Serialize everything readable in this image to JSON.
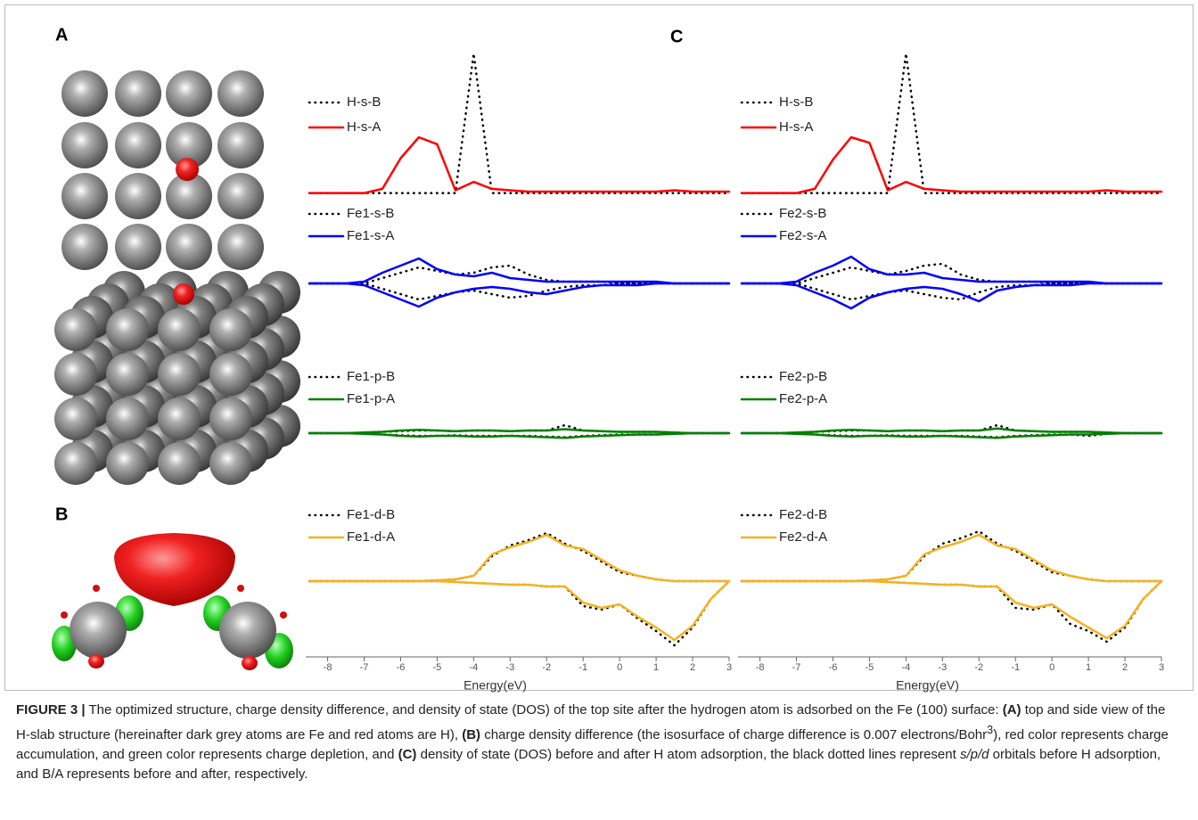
{
  "panel_labels": [
    "A",
    "B",
    "C"
  ],
  "chart_data": [
    {
      "type": "line",
      "x": [
        -8.5,
        -8,
        -7.5,
        -7,
        -6.5,
        -6,
        -5.5,
        -5,
        -4.5,
        -4,
        -3.5,
        -3,
        -2.5,
        -2,
        -1.5,
        -1,
        -0.5,
        0,
        0.5,
        1,
        1.5,
        2,
        2.5,
        3
      ],
      "xlim": [
        -8.6,
        3
      ],
      "ylim": [
        -0.6,
        10
      ],
      "series": [
        {
          "name": "H-s-B",
          "color": "#000000",
          "linestyle": "dotted",
          "values": [
            0,
            0,
            0,
            0,
            0,
            0,
            0,
            0,
            0,
            10,
            0,
            0,
            0,
            0,
            0,
            0,
            0,
            0,
            0,
            0,
            0,
            0,
            0,
            0
          ]
        },
        {
          "name": "H-s-A",
          "color": "#ff0000",
          "linestyle": "solid",
          "values": [
            0,
            0,
            0,
            0,
            0.3,
            2.5,
            4,
            3.5,
            0.2,
            0.8,
            0.3,
            0.2,
            0.1,
            0.1,
            0.1,
            0.1,
            0.1,
            0.1,
            0.1,
            0.1,
            0.2,
            0.1,
            0.1,
            0.1
          ]
        }
      ]
    },
    {
      "type": "line",
      "x": [
        -8.5,
        -8,
        -7.5,
        -7,
        -6.5,
        -6,
        -5.5,
        -5,
        -4.5,
        -4,
        -3.5,
        -3,
        -2.5,
        -2,
        -1.5,
        -1,
        -0.5,
        0,
        0.5,
        1,
        1.5,
        2,
        2.5,
        3
      ],
      "xlim": [
        -8.6,
        3
      ],
      "ylim": [
        -0.6,
        10
      ],
      "series": [
        {
          "name": "H-s-B",
          "color": "#000000",
          "linestyle": "dotted",
          "values": [
            0,
            0,
            0,
            0,
            0,
            0,
            0,
            0,
            0,
            10,
            0,
            0,
            0,
            0,
            0,
            0,
            0,
            0,
            0,
            0,
            0,
            0,
            0,
            0
          ]
        },
        {
          "name": "H-s-A",
          "color": "#ff0000",
          "linestyle": "solid",
          "values": [
            0,
            0,
            0,
            0,
            0.3,
            2.4,
            4,
            3.6,
            0.2,
            0.8,
            0.3,
            0.2,
            0.1,
            0.1,
            0.1,
            0.1,
            0.1,
            0.1,
            0.1,
            0.1,
            0.2,
            0.1,
            0.1,
            0.1
          ]
        }
      ]
    },
    {
      "type": "line",
      "x": [
        -8.5,
        -8,
        -7.5,
        -7,
        -6.5,
        -6,
        -5.5,
        -5,
        -4.5,
        -4,
        -3.5,
        -3,
        -2.5,
        -2,
        -1.5,
        -1,
        -0.5,
        0,
        0.5,
        1,
        1.5,
        2,
        2.5,
        3
      ],
      "xlim": [
        -8.6,
        3
      ],
      "ylim": [
        -2,
        2
      ],
      "series": [
        {
          "name": "Fe1-s-B",
          "color": "#000000",
          "linestyle": "dotted",
          "values": [
            0,
            0,
            0,
            0,
            0.3,
            0.6,
            0.9,
            0.7,
            0.5,
            0.6,
            0.9,
            1.0,
            0.5,
            0.2,
            0.1,
            0.1,
            0.1,
            0,
            0,
            0,
            0,
            0,
            0,
            0
          ],
          "values_down": [
            0,
            0,
            0,
            0,
            -0.3,
            -0.6,
            -0.9,
            -0.7,
            -0.5,
            -0.4,
            -0.6,
            -0.8,
            -0.7,
            -0.4,
            -0.2,
            -0.1,
            -0.1,
            0,
            0,
            0,
            0,
            0,
            0,
            0
          ]
        },
        {
          "name": "Fe1-s-A",
          "color": "#0000ff",
          "linestyle": "solid",
          "values": [
            0,
            0,
            0,
            0.1,
            0.6,
            1.0,
            1.4,
            0.8,
            0.5,
            0.4,
            0.6,
            0.3,
            0.2,
            0.1,
            0.1,
            0.1,
            0.1,
            0.1,
            0.1,
            0.1,
            0,
            0,
            0,
            0
          ],
          "values_down": [
            0,
            0,
            0,
            -0.1,
            -0.5,
            -0.9,
            -1.3,
            -0.8,
            -0.5,
            -0.3,
            -0.2,
            -0.3,
            -0.5,
            -0.6,
            -0.4,
            -0.2,
            -0.1,
            -0.1,
            -0.1,
            0,
            0,
            0,
            0,
            0
          ]
        }
      ]
    },
    {
      "type": "line",
      "x": [
        -8.5,
        -8,
        -7.5,
        -7,
        -6.5,
        -6,
        -5.5,
        -5,
        -4.5,
        -4,
        -3.5,
        -3,
        -2.5,
        -2,
        -1.5,
        -1,
        -0.5,
        0,
        0.5,
        1,
        1.5,
        2,
        2.5,
        3
      ],
      "xlim": [
        -8.6,
        3
      ],
      "ylim": [
        -2,
        2
      ],
      "series": [
        {
          "name": "Fe2-s-B",
          "color": "#000000",
          "linestyle": "dotted",
          "values": [
            0,
            0,
            0,
            0,
            0.3,
            0.6,
            0.9,
            0.7,
            0.5,
            0.7,
            1.0,
            1.1,
            0.5,
            0.2,
            0.1,
            0.1,
            0.1,
            0,
            0,
            0,
            0,
            0,
            0,
            0
          ],
          "values_down": [
            0,
            0,
            0,
            0,
            -0.3,
            -0.6,
            -0.9,
            -0.7,
            -0.5,
            -0.4,
            -0.6,
            -0.8,
            -0.9,
            -0.5,
            -0.2,
            -0.1,
            -0.1,
            0,
            0,
            0,
            0,
            0,
            0,
            0
          ]
        },
        {
          "name": "Fe2-s-A",
          "color": "#0000ff",
          "linestyle": "solid",
          "values": [
            0,
            0,
            0,
            0.1,
            0.6,
            1.0,
            1.5,
            0.8,
            0.5,
            0.5,
            0.6,
            0.3,
            0.2,
            0.1,
            0.1,
            0.1,
            0.1,
            0.1,
            0.1,
            0.1,
            0,
            0,
            0,
            0
          ],
          "values_down": [
            0,
            0,
            0,
            -0.1,
            -0.5,
            -0.9,
            -1.4,
            -0.8,
            -0.5,
            -0.3,
            -0.2,
            -0.3,
            -0.6,
            -1.0,
            -0.4,
            -0.2,
            -0.1,
            -0.1,
            -0.1,
            0,
            0,
            0,
            0,
            0
          ]
        }
      ]
    },
    {
      "type": "line",
      "x": [
        -8.5,
        -8,
        -7.5,
        -7,
        -6.5,
        -6,
        -5.5,
        -5,
        -4.5,
        -4,
        -3.5,
        -3,
        -2.5,
        -2,
        -1.5,
        -1,
        -0.5,
        0,
        0.5,
        1,
        1.5,
        2,
        2.5,
        3
      ],
      "xlim": [
        -8.6,
        3
      ],
      "ylim": [
        -2,
        2
      ],
      "series": [
        {
          "name": "Fe1-p-B",
          "color": "#000000",
          "linestyle": "dotted",
          "values": [
            0,
            0,
            0,
            0.05,
            0.1,
            0.15,
            0.2,
            0.2,
            0.15,
            0.2,
            0.2,
            0.15,
            0.2,
            0.2,
            0.6,
            0.2,
            0.15,
            0.1,
            0.1,
            0.1,
            0.05,
            0,
            0,
            0
          ],
          "values_down": [
            0,
            0,
            0,
            -0.05,
            -0.1,
            -0.15,
            -0.2,
            -0.2,
            -0.15,
            -0.2,
            -0.2,
            -0.2,
            -0.2,
            -0.25,
            -0.3,
            -0.2,
            -0.15,
            -0.1,
            -0.1,
            -0.1,
            -0.05,
            0,
            0,
            0
          ]
        },
        {
          "name": "Fe1-p-A",
          "color": "#007f00",
          "linestyle": "solid",
          "values": [
            0,
            0,
            0,
            0.05,
            0.1,
            0.2,
            0.25,
            0.2,
            0.15,
            0.2,
            0.2,
            0.15,
            0.2,
            0.2,
            0.3,
            0.2,
            0.15,
            0.1,
            0.1,
            0.1,
            0.05,
            0,
            0,
            0
          ],
          "values_down": [
            0,
            0,
            0,
            -0.05,
            -0.1,
            -0.2,
            -0.25,
            -0.2,
            -0.2,
            -0.25,
            -0.25,
            -0.2,
            -0.25,
            -0.3,
            -0.35,
            -0.25,
            -0.2,
            -0.15,
            -0.1,
            -0.1,
            -0.05,
            0,
            0,
            0
          ]
        }
      ]
    },
    {
      "type": "line",
      "x": [
        -8.5,
        -8,
        -7.5,
        -7,
        -6.5,
        -6,
        -5.5,
        -5,
        -4.5,
        -4,
        -3.5,
        -3,
        -2.5,
        -2,
        -1.5,
        -1,
        -0.5,
        0,
        0.5,
        1,
        1.5,
        2,
        2.5,
        3
      ],
      "xlim": [
        -8.6,
        3
      ],
      "ylim": [
        -2,
        2
      ],
      "series": [
        {
          "name": "Fe2-p-B",
          "color": "#000000",
          "linestyle": "dotted",
          "values": [
            0,
            0,
            0,
            0.05,
            0.1,
            0.15,
            0.2,
            0.2,
            0.15,
            0.2,
            0.2,
            0.15,
            0.2,
            0.2,
            0.6,
            0.2,
            0.15,
            0.1,
            0.1,
            0.1,
            0.05,
            0,
            0,
            0
          ],
          "values_down": [
            0,
            0,
            0,
            -0.05,
            -0.1,
            -0.15,
            -0.2,
            -0.2,
            -0.15,
            -0.2,
            -0.2,
            -0.2,
            -0.2,
            -0.25,
            -0.3,
            -0.2,
            -0.15,
            -0.1,
            -0.1,
            -0.2,
            -0.05,
            0,
            0,
            0
          ]
        },
        {
          "name": "Fe2-p-A",
          "color": "#007f00",
          "linestyle": "solid",
          "values": [
            0,
            0,
            0,
            0.05,
            0.1,
            0.2,
            0.25,
            0.2,
            0.15,
            0.2,
            0.2,
            0.15,
            0.2,
            0.2,
            0.35,
            0.2,
            0.15,
            0.1,
            0.1,
            0.1,
            0.05,
            0,
            0,
            0
          ],
          "values_down": [
            0,
            0,
            0,
            -0.05,
            -0.1,
            -0.2,
            -0.25,
            -0.2,
            -0.2,
            -0.25,
            -0.25,
            -0.2,
            -0.25,
            -0.3,
            -0.35,
            -0.25,
            -0.2,
            -0.15,
            -0.1,
            -0.1,
            -0.05,
            0,
            0,
            0
          ]
        }
      ]
    },
    {
      "type": "line",
      "x": [
        -8.5,
        -8,
        -7.5,
        -7,
        -6.5,
        -6,
        -5.5,
        -5,
        -4.5,
        -4,
        -3.5,
        -3,
        -2.5,
        -2,
        -1.5,
        -1,
        -0.5,
        0,
        0.5,
        1,
        1.5,
        2,
        2.5,
        3
      ],
      "xlim": [
        -8.6,
        3
      ],
      "ylim": [
        -4,
        4
      ],
      "xticks": [
        -8,
        -7,
        -6,
        -5,
        -4,
        -3,
        -2,
        -1,
        0,
        1,
        2,
        3
      ],
      "xlabel": "Energy(eV)",
      "series": [
        {
          "name": "Fe1-d-B",
          "color": "#000000",
          "linestyle": "dotted",
          "values": [
            0,
            0,
            0,
            0,
            0,
            0,
            0,
            0.05,
            0.1,
            0.3,
            1.4,
            2.0,
            2.3,
            2.7,
            2.1,
            1.7,
            1.1,
            0.5,
            0.3,
            0.1,
            0,
            0,
            0,
            0
          ],
          "values_down": [
            0,
            0,
            0,
            0,
            0,
            0,
            0,
            0,
            -0.05,
            -0.1,
            -0.15,
            -0.2,
            -0.2,
            -0.3,
            -0.3,
            -1.4,
            -1.6,
            -1.3,
            -2.1,
            -2.8,
            -3.6,
            -2.6,
            -1.0,
            0
          ]
        },
        {
          "name": "Fe1-d-A",
          "color": "#f5b220",
          "linestyle": "solid",
          "values": [
            0,
            0,
            0,
            0,
            0,
            0,
            0,
            0.05,
            0.1,
            0.3,
            1.5,
            1.9,
            2.2,
            2.6,
            2.0,
            1.8,
            1.2,
            0.6,
            0.3,
            0.1,
            0,
            0,
            0,
            0
          ],
          "values_down": [
            0,
            0,
            0,
            0,
            0,
            0,
            0,
            0,
            -0.05,
            -0.1,
            -0.15,
            -0.2,
            -0.2,
            -0.3,
            -0.3,
            -1.2,
            -1.5,
            -1.3,
            -2.0,
            -2.6,
            -3.3,
            -2.5,
            -1.0,
            0
          ]
        }
      ]
    },
    {
      "type": "line",
      "x": [
        -8.5,
        -8,
        -7.5,
        -7,
        -6.5,
        -6,
        -5.5,
        -5,
        -4.5,
        -4,
        -3.5,
        -3,
        -2.5,
        -2,
        -1.5,
        -1,
        -0.5,
        0,
        0.5,
        1,
        1.5,
        2,
        2.5,
        3
      ],
      "xlim": [
        -8.6,
        3
      ],
      "ylim": [
        -4,
        4
      ],
      "xticks": [
        -8,
        -7,
        -6,
        -5,
        -4,
        -3,
        -2,
        -1,
        0,
        1,
        2,
        3
      ],
      "xlabel": "Energy(eV)",
      "series": [
        {
          "name": "Fe2-d-B",
          "color": "#000000",
          "linestyle": "dotted",
          "values": [
            0,
            0,
            0,
            0,
            0,
            0,
            0,
            0.05,
            0.1,
            0.3,
            1.4,
            2.1,
            2.4,
            2.8,
            2.1,
            1.7,
            1.1,
            0.5,
            0.3,
            0.1,
            0,
            0,
            0,
            0
          ],
          "values_down": [
            0,
            0,
            0,
            0,
            0,
            0,
            0,
            0,
            -0.05,
            -0.1,
            -0.15,
            -0.2,
            -0.2,
            -0.3,
            -0.3,
            -1.5,
            -1.6,
            -1.3,
            -2.4,
            -2.8,
            -3.4,
            -2.6,
            -1.0,
            0
          ]
        },
        {
          "name": "Fe2-d-A",
          "color": "#f5b220",
          "linestyle": "solid",
          "values": [
            0,
            0,
            0,
            0,
            0,
            0,
            0,
            0.05,
            0.1,
            0.3,
            1.5,
            1.9,
            2.2,
            2.6,
            2.0,
            1.8,
            1.2,
            0.6,
            0.3,
            0.1,
            0,
            0,
            0,
            0
          ],
          "values_down": [
            0,
            0,
            0,
            0,
            0,
            0,
            0,
            0,
            -0.05,
            -0.1,
            -0.15,
            -0.2,
            -0.2,
            -0.3,
            -0.3,
            -1.2,
            -1.5,
            -1.3,
            -2.0,
            -2.6,
            -3.2,
            -2.5,
            -1.0,
            0
          ]
        }
      ]
    }
  ],
  "caption": [
    "FIGURE 3 |",
    " The optimized structure, charge density difference, and density of state (DOS) of the top site after the hydrogen atom is adsorbed on the Fe (100) surface: ",
    "(A)",
    " top and side view of the H-slab structure (hereinafter dark grey atoms are Fe and red atoms are H), ",
    "(B)",
    " charge density difference (the isosurface of charge difference is 0.007 electrons/Bohr",
    "3",
    "), red color represents charge accumulation, and green color represents charge depletion, and ",
    "(C)",
    " density of state (DOS) before and after H atom adsorption, the black dotted lines represent ",
    "s/p/d",
    " orbitals before H adsorption, and B/A represents before and after, respectively."
  ]
}
